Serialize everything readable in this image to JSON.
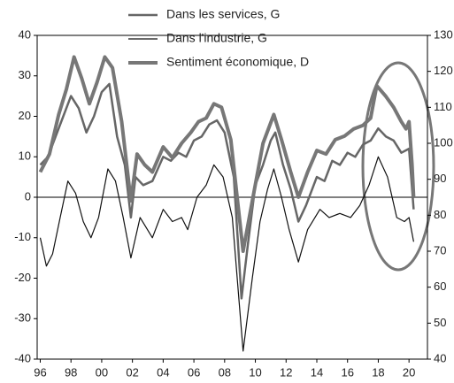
{
  "chart_data": {
    "type": "line",
    "xlim": [
      1995.8,
      2021.2
    ],
    "xticks": [
      {
        "value": 1996,
        "label": "96"
      },
      {
        "value": 1998,
        "label": "98"
      },
      {
        "value": 2000,
        "label": "00"
      },
      {
        "value": 2002,
        "label": "02"
      },
      {
        "value": 2004,
        "label": "04"
      },
      {
        "value": 2006,
        "label": "06"
      },
      {
        "value": 2008,
        "label": "08"
      },
      {
        "value": 2010,
        "label": "10"
      },
      {
        "value": 2012,
        "label": "12"
      },
      {
        "value": 2014,
        "label": "14"
      },
      {
        "value": 2016,
        "label": "16"
      },
      {
        "value": 2018,
        "label": "18"
      },
      {
        "value": 2020,
        "label": "20"
      }
    ],
    "ylim": [
      -40,
      40
    ],
    "yticks": [
      -40,
      -30,
      -20,
      -10,
      0,
      10,
      20,
      30,
      40
    ],
    "y2lim": [
      40,
      130
    ],
    "y2ticks": [
      40,
      50,
      60,
      70,
      80,
      90,
      100,
      110,
      120,
      130
    ],
    "series": [
      {
        "name": "Dans les services, G",
        "color": "#666666",
        "line_width": 2.5,
        "x": [
          1996,
          1996.5,
          1997,
          1997.5,
          1998,
          1998.5,
          1999,
          1999.5,
          2000,
          2000.5,
          2001,
          2001.5,
          2001.9,
          2002.2,
          2002.7,
          2003.3,
          2004,
          2004.5,
          2005,
          2005.5,
          2006,
          2006.5,
          2007,
          2007.5,
          2008,
          2008.6,
          2009.1,
          2009.5,
          2010,
          2010.5,
          2011,
          2011.3,
          2011.8,
          2012.3,
          2012.8,
          2013.3,
          2014,
          2014.5,
          2015,
          2015.5,
          2016,
          2016.5,
          2017,
          2017.5,
          2018,
          2018.5,
          2019,
          2019.5,
          2020,
          2020.3
        ],
        "values": [
          8,
          10,
          15,
          20,
          25,
          22,
          16,
          20,
          26,
          28,
          15,
          8,
          -5,
          5,
          3,
          4,
          10,
          9,
          11,
          10,
          14,
          15,
          18,
          19,
          16,
          5,
          -25,
          -12,
          3,
          8,
          14,
          16,
          8,
          2,
          -6,
          -2,
          5,
          4,
          9,
          8,
          11,
          10,
          13,
          14,
          17,
          15,
          14,
          11,
          12,
          -3
        ]
      },
      {
        "name": "Dans l'industrie, G",
        "color": "#111111",
        "line_width": 1.2,
        "x": [
          1996,
          1996.4,
          1996.8,
          1997.3,
          1997.8,
          1998.3,
          1998.8,
          1999.3,
          1999.8,
          2000.4,
          2000.9,
          2001.4,
          2001.9,
          2002.5,
          2003.3,
          2004,
          2004.6,
          2005.2,
          2005.6,
          2006.2,
          2006.8,
          2007.3,
          2007.9,
          2008.5,
          2009.2,
          2009.8,
          2010.3,
          2010.8,
          2011.2,
          2011.7,
          2012.2,
          2012.8,
          2013.4,
          2014.2,
          2014.8,
          2015.5,
          2016.2,
          2016.8,
          2017.4,
          2018,
          2018.6,
          2019.2,
          2019.7,
          2020,
          2020.3
        ],
        "values": [
          -10,
          -17,
          -14,
          -5,
          4,
          1,
          -6,
          -10,
          -5,
          7,
          4,
          -5,
          -15,
          -5,
          -10,
          -3,
          -6,
          -5,
          -8,
          0,
          3,
          8,
          5,
          -5,
          -38,
          -20,
          -6,
          2,
          7,
          0,
          -8,
          -16,
          -8,
          -3,
          -5,
          -4,
          -5,
          -2,
          3,
          10,
          5,
          -5,
          -6,
          -5,
          -11
        ]
      },
      {
        "name": "Sentiment économique, D",
        "color": "#777777",
        "line_width": 4,
        "x": [
          1996,
          1996.6,
          1997.2,
          1997.7,
          1998.2,
          1998.7,
          1999.2,
          1999.7,
          2000.2,
          2000.7,
          2001.3,
          2001.9,
          2002.3,
          2002.8,
          2003.3,
          2004,
          2004.6,
          2005.2,
          2005.8,
          2006.3,
          2006.8,
          2007.3,
          2007.8,
          2008.4,
          2009.2,
          2009.8,
          2010.5,
          2011.2,
          2011.7,
          2012.3,
          2012.8,
          2013.4,
          2014,
          2014.6,
          2015.2,
          2015.8,
          2016.4,
          2017,
          2017.5,
          2017.9,
          2018.5,
          2019,
          2019.5,
          2019.8,
          2020,
          2020.2,
          2020.3
        ],
        "values": [
          92,
          97,
          108,
          115,
          124,
          118,
          111,
          117,
          124,
          121,
          106,
          84,
          97,
          94,
          92,
          99,
          96,
          100,
          103,
          106,
          107,
          111,
          110,
          101,
          70,
          84,
          100,
          108,
          101,
          92,
          85,
          92,
          98,
          97,
          101,
          102,
          104,
          105,
          107,
          116,
          113,
          110,
          106,
          104,
          106,
          94,
          85
        ]
      }
    ]
  }
}
